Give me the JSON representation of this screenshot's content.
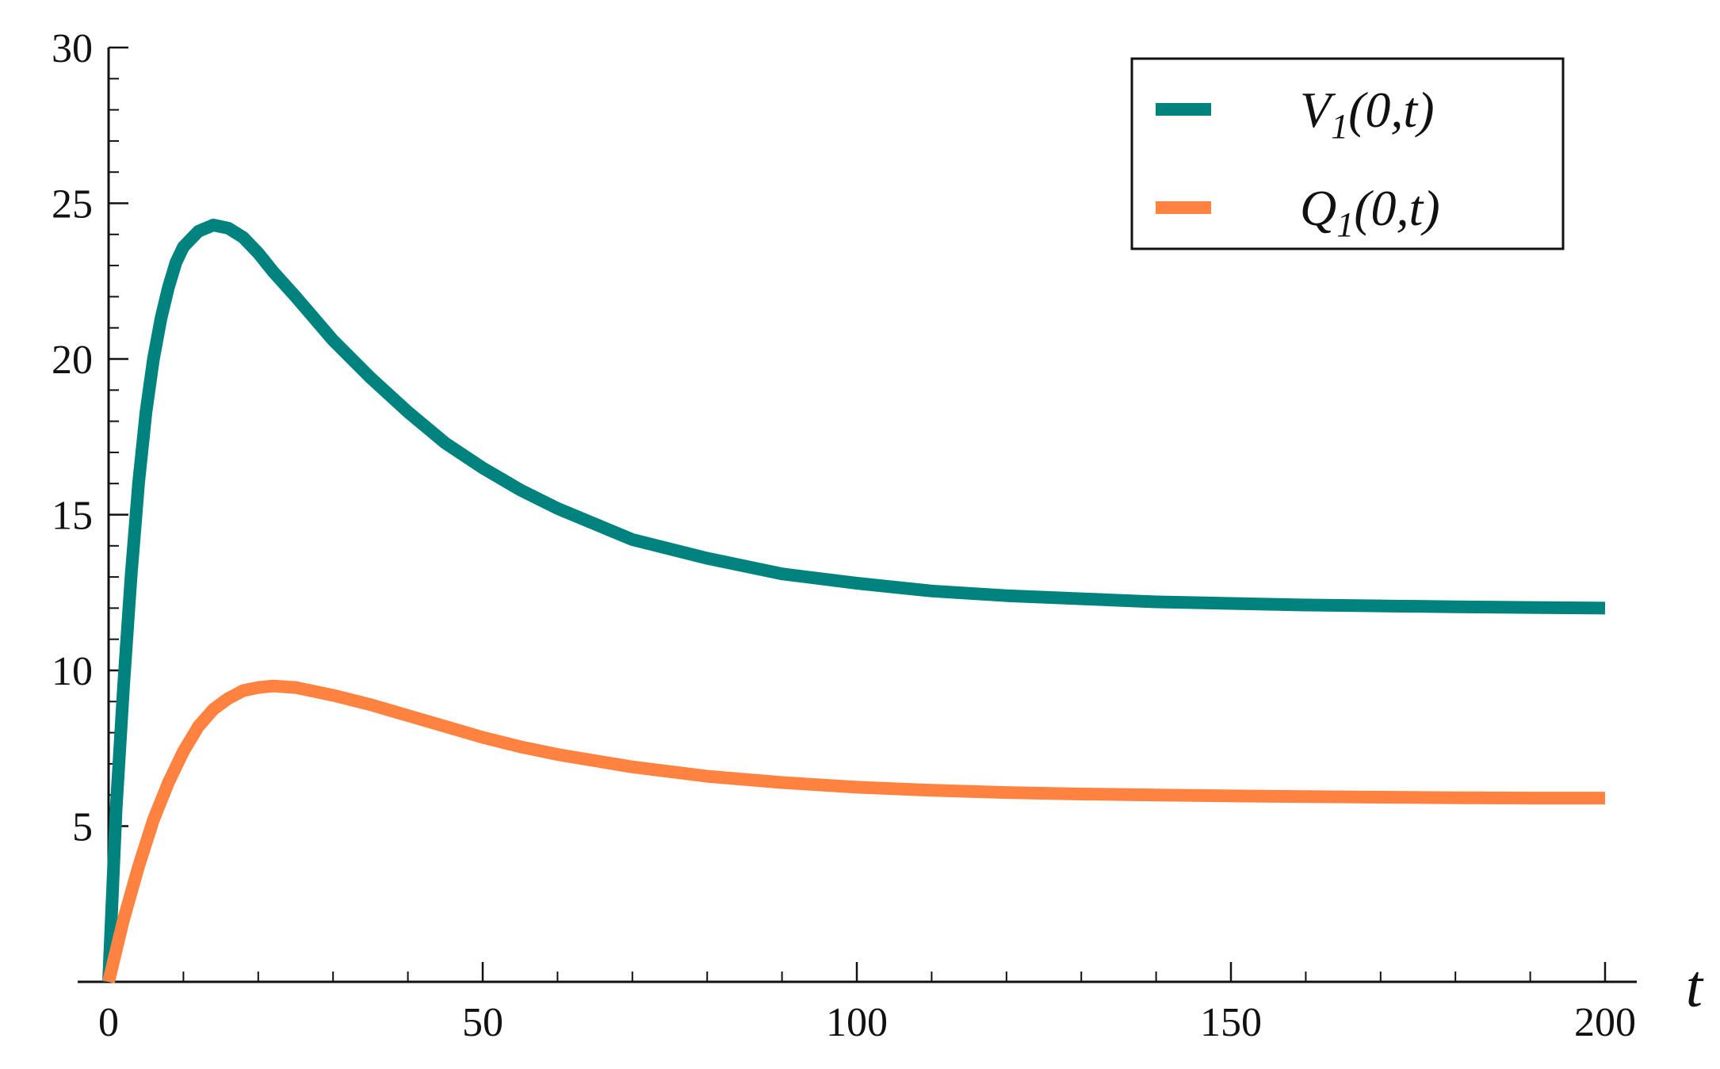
{
  "chart_data": {
    "type": "line",
    "title": "",
    "xlabel": "t",
    "ylabel": "",
    "xlim": [
      0,
      200
    ],
    "ylim": [
      0,
      30
    ],
    "xticks_major": [
      0,
      50,
      100,
      150,
      200
    ],
    "xtick_labels": [
      "0",
      "50",
      "100",
      "150",
      "200"
    ],
    "xticks_minor_step": 10,
    "yticks_major": [
      5,
      10,
      15,
      20,
      25,
      30
    ],
    "ytick_labels": [
      "5",
      "10",
      "15",
      "20",
      "25",
      "30"
    ],
    "yticks_minor_step": 1,
    "grid": false,
    "legend": {
      "position": "top-right",
      "frame": true
    },
    "series": [
      {
        "name": "V1(0,t)",
        "name_main": "V",
        "name_sub": "1",
        "name_args": "(0,t)",
        "color": "#00827F",
        "x": [
          0,
          1,
          2,
          3,
          4,
          5,
          6,
          7,
          8,
          9,
          10,
          12,
          14,
          16,
          18,
          20,
          22,
          25,
          30,
          35,
          40,
          45,
          50,
          55,
          60,
          65,
          70,
          80,
          90,
          100,
          110,
          120,
          130,
          140,
          150,
          160,
          170,
          180,
          190,
          200
        ],
        "y": [
          0,
          5.5,
          9.5,
          13.0,
          16.0,
          18.3,
          20.0,
          21.3,
          22.3,
          23.1,
          23.6,
          24.1,
          24.3,
          24.2,
          23.9,
          23.4,
          22.8,
          22.0,
          20.6,
          19.4,
          18.3,
          17.3,
          16.5,
          15.8,
          15.2,
          14.7,
          14.2,
          13.6,
          13.1,
          12.8,
          12.55,
          12.4,
          12.3,
          12.2,
          12.15,
          12.1,
          12.07,
          12.04,
          12.02,
          12.0
        ]
      },
      {
        "name": "Q1(0,t)",
        "name_main": "Q",
        "name_sub": "1",
        "name_args": "(0,t)",
        "color": "#FF8240",
        "x": [
          0,
          2,
          4,
          6,
          8,
          10,
          12,
          14,
          16,
          18,
          20,
          22,
          25,
          30,
          35,
          40,
          45,
          50,
          55,
          60,
          65,
          70,
          80,
          90,
          100,
          110,
          120,
          130,
          140,
          150,
          160,
          170,
          180,
          190,
          200
        ],
        "y": [
          0,
          2.0,
          3.7,
          5.2,
          6.4,
          7.4,
          8.2,
          8.75,
          9.1,
          9.35,
          9.45,
          9.5,
          9.45,
          9.2,
          8.9,
          8.55,
          8.2,
          7.85,
          7.55,
          7.3,
          7.1,
          6.9,
          6.6,
          6.4,
          6.25,
          6.15,
          6.08,
          6.03,
          6.0,
          5.97,
          5.95,
          5.93,
          5.91,
          5.9,
          5.9
        ]
      }
    ]
  }
}
